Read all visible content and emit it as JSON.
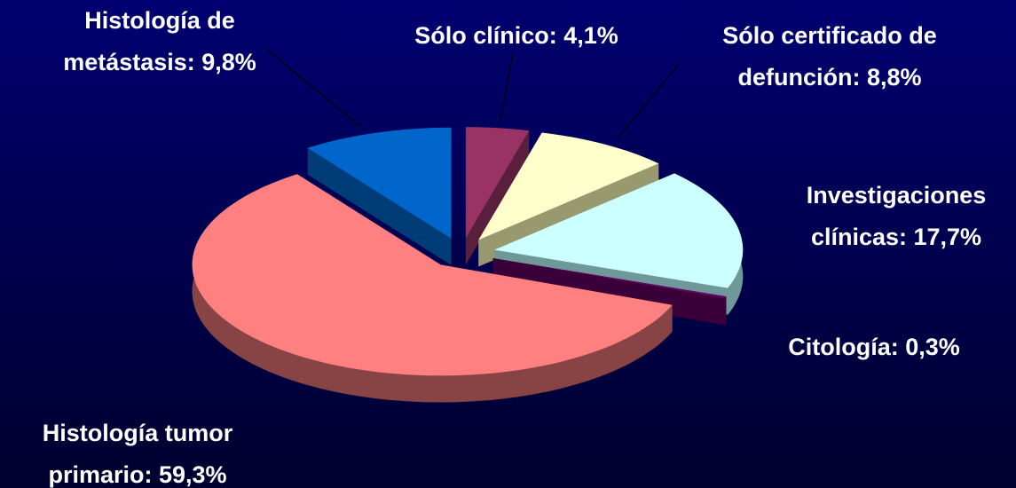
{
  "chart_data": {
    "type": "pie",
    "categories": [
      [
        "Sólo clínico: 4,1%"
      ],
      [
        "Sólo certificado de",
        "defunción: 8,8%"
      ],
      [
        "Investigaciones",
        "clínicas: 17,7%"
      ],
      [
        "Citología: 0,3%"
      ],
      [
        "Histología tumor",
        "primario: 59,3%"
      ],
      [
        "Histología de",
        "metástasis: 9,8%"
      ]
    ],
    "values": [
      4.1,
      8.8,
      17.7,
      0.3,
      59.3,
      9.8
    ],
    "colors": [
      "#993366",
      "#ffffcc",
      "#ccffff",
      "#660066",
      "#ff8080",
      "#0066cc"
    ],
    "side_colors": [
      "#5a1f3c",
      "#999970",
      "#6f9999",
      "#3a003a",
      "#884444",
      "#003c78"
    ]
  }
}
